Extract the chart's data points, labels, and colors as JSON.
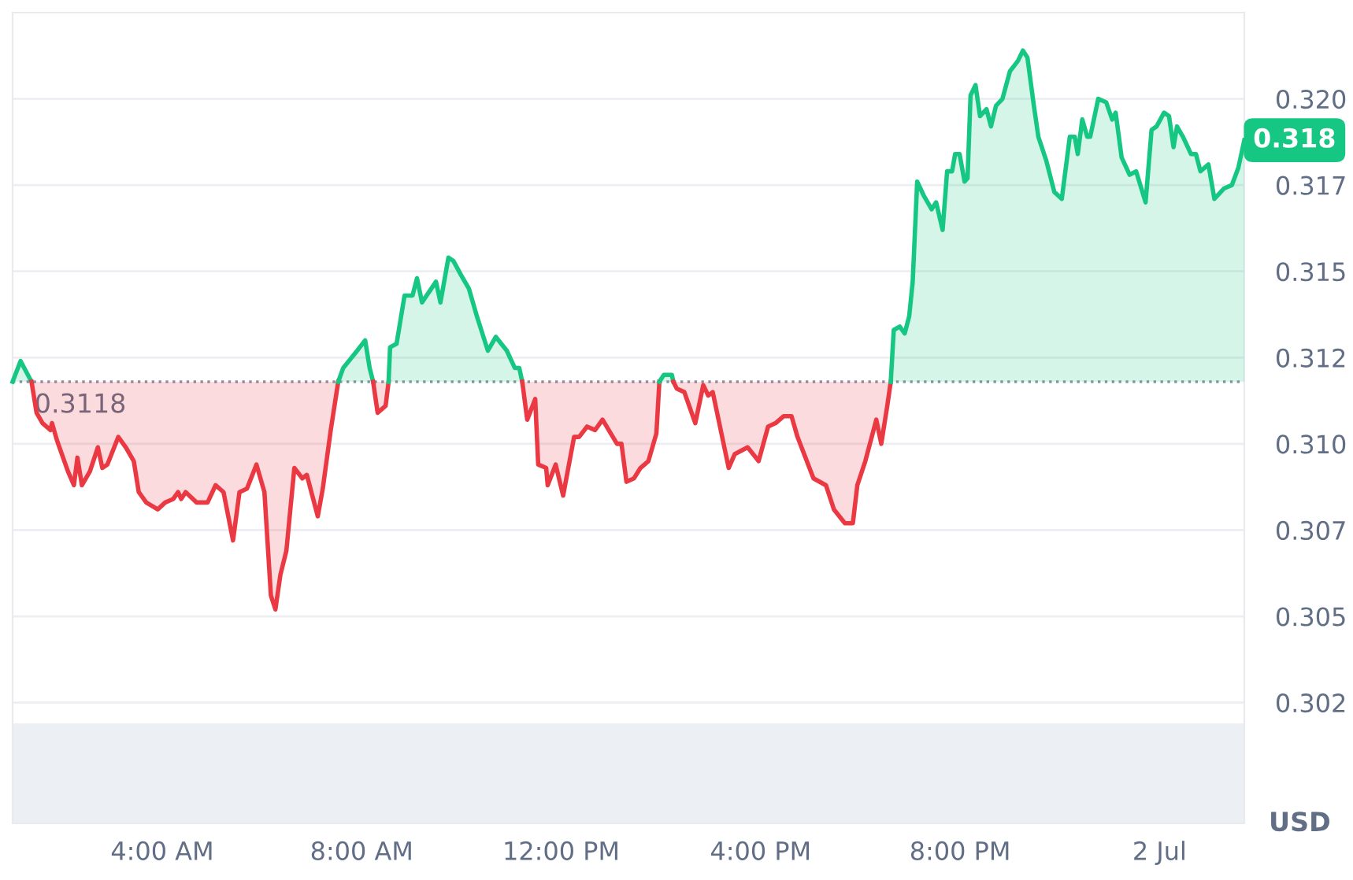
{
  "chart_data": [
    {
      "type": "line",
      "ylabel": "USD",
      "xlim": [
        1.0,
        25.7
      ],
      "xticks": [
        {
          "value": 4,
          "label": "4:00 AM"
        },
        {
          "value": 8,
          "label": "8:00 AM"
        },
        {
          "value": 12,
          "label": "12:00 PM"
        },
        {
          "value": 16,
          "label": "4:00 PM"
        },
        {
          "value": 20,
          "label": "8:00 PM"
        },
        {
          "value": 24,
          "label": "2 Jul"
        }
      ],
      "ylim": [
        0.299,
        0.3225
      ],
      "yticks": [
        {
          "value": 0.3025,
          "label": "0.302"
        },
        {
          "value": 0.305,
          "label": "0.305"
        },
        {
          "value": 0.3075,
          "label": "0.307"
        },
        {
          "value": 0.31,
          "label": "0.310"
        },
        {
          "value": 0.3125,
          "label": "0.312"
        },
        {
          "value": 0.315,
          "label": "0.315"
        },
        {
          "value": 0.3175,
          "label": "0.317"
        },
        {
          "value": 0.32,
          "label": "0.320"
        }
      ],
      "grid": "y",
      "ref_lines": [
        {
          "axis": "y",
          "value": 0.3118,
          "label": "0.3118",
          "color": "#8a93a6",
          "line_style": "dotted"
        }
      ],
      "bands": [
        {
          "axis": "y",
          "from": 0.299,
          "to": 0.3019,
          "color": "#eceff3"
        }
      ],
      "annotations": [
        {
          "text": "0.318",
          "x": 25.7,
          "y": 0.3188
        }
      ],
      "series": [
        {
          "color": "#16c784",
          "x": [
            1.0,
            1.16,
            1.38
          ],
          "values": [
            0.3118,
            0.3124,
            0.3118
          ],
          "lower": [
            0.3118,
            0.3118,
            0.3118
          ],
          "upper": [
            0.3118,
            0.3124,
            0.3118
          ]
        },
        {
          "color": "#ea3943",
          "x": [
            1.38,
            1.48,
            1.6,
            1.76,
            1.79,
            1.89,
            2.11,
            2.23,
            2.3,
            2.39,
            2.55,
            2.71,
            2.8,
            2.9,
            3.12,
            3.27,
            3.43,
            3.53,
            3.68,
            3.91,
            4.06,
            4.22,
            4.32,
            4.38,
            4.47,
            4.69,
            4.91,
            5.07,
            5.23,
            5.42,
            5.55,
            5.7,
            5.89,
            6.05,
            6.18,
            6.27,
            6.37,
            6.49,
            6.65,
            6.81,
            6.9,
            7.12,
            7.22,
            7.38,
            7.53
          ],
          "values": [
            0.3118,
            0.3109,
            0.3106,
            0.3104,
            0.3106,
            0.3101,
            0.3092,
            0.3088,
            0.3096,
            0.3088,
            0.3092,
            0.3099,
            0.3093,
            0.3094,
            0.3102,
            0.3099,
            0.3095,
            0.3086,
            0.3083,
            0.3081,
            0.3083,
            0.3084,
            0.3086,
            0.3084,
            0.3086,
            0.3083,
            0.3083,
            0.3088,
            0.3086,
            0.3072,
            0.3086,
            0.3087,
            0.3094,
            0.3086,
            0.3056,
            0.3052,
            0.3062,
            0.3069,
            0.3093,
            0.309,
            0.3091,
            0.3079,
            0.3087,
            0.3104,
            0.3118
          ],
          "lower": [
            0.3118,
            0.3109,
            0.3106,
            0.3104,
            0.3106,
            0.3101,
            0.3092,
            0.3088,
            0.3096,
            0.3088,
            0.3092,
            0.3099,
            0.3093,
            0.3094,
            0.3102,
            0.3099,
            0.3095,
            0.3086,
            0.3083,
            0.3081,
            0.3083,
            0.3084,
            0.3086,
            0.3084,
            0.3086,
            0.3083,
            0.3083,
            0.3088,
            0.3086,
            0.3072,
            0.3086,
            0.3087,
            0.3094,
            0.3086,
            0.3056,
            0.3052,
            0.3062,
            0.3069,
            0.3093,
            0.309,
            0.3091,
            0.3079,
            0.3087,
            0.3104,
            0.3118
          ],
          "upper": [
            0.3118,
            0.3118,
            0.3118,
            0.3118,
            0.3118,
            0.3118,
            0.3118,
            0.3118,
            0.3118,
            0.3118,
            0.3118,
            0.3118,
            0.3118,
            0.3118,
            0.3118,
            0.3118,
            0.3118,
            0.3118,
            0.3118,
            0.3118,
            0.3118,
            0.3118,
            0.3118,
            0.3118,
            0.3118,
            0.3118,
            0.3118,
            0.3118,
            0.3118,
            0.3118,
            0.3118,
            0.3118,
            0.3118,
            0.3118,
            0.3118,
            0.3118,
            0.3118,
            0.3118,
            0.3118,
            0.3118,
            0.3118,
            0.3118,
            0.3118,
            0.3118,
            0.3118
          ]
        },
        {
          "color": "#16c784",
          "x": [
            7.53,
            7.63,
            7.91,
            8.07,
            8.16,
            8.23
          ],
          "values": [
            0.3118,
            0.3122,
            0.3127,
            0.313,
            0.3122,
            0.3118
          ],
          "lower": [
            0.3118,
            0.3118,
            0.3118,
            0.3118,
            0.3118,
            0.3118
          ],
          "upper": [
            0.3118,
            0.3122,
            0.3127,
            0.313,
            0.3122,
            0.3118
          ]
        },
        {
          "color": "#ea3943",
          "x": [
            8.23,
            8.32,
            8.48,
            8.54
          ],
          "values": [
            0.3118,
            0.3109,
            0.3111,
            0.3118
          ],
          "lower": [
            0.3118,
            0.3109,
            0.3111,
            0.3118
          ],
          "upper": [
            0.3118,
            0.3118,
            0.3118,
            0.3118
          ]
        },
        {
          "color": "#16c784",
          "x": [
            8.54,
            8.57,
            8.7,
            8.86,
            9.02,
            9.11,
            9.21,
            9.49,
            9.58,
            9.74,
            9.84,
            9.99,
            10.15,
            10.31,
            10.53,
            10.69,
            10.91,
            11.07,
            11.16,
            11.22
          ],
          "values": [
            0.3118,
            0.3128,
            0.3129,
            0.3143,
            0.3143,
            0.3148,
            0.3141,
            0.3147,
            0.3141,
            0.3154,
            0.3153,
            0.3149,
            0.3145,
            0.3137,
            0.3127,
            0.3131,
            0.3127,
            0.3122,
            0.3122,
            0.3118
          ],
          "lower": [
            0.3118,
            0.3118,
            0.3118,
            0.3118,
            0.3118,
            0.3118,
            0.3118,
            0.3118,
            0.3118,
            0.3118,
            0.3118,
            0.3118,
            0.3118,
            0.3118,
            0.3118,
            0.3118,
            0.3118,
            0.3118,
            0.3118,
            0.3118
          ],
          "upper": [
            0.3118,
            0.3128,
            0.3129,
            0.3143,
            0.3143,
            0.3148,
            0.3141,
            0.3147,
            0.3141,
            0.3154,
            0.3153,
            0.3149,
            0.3145,
            0.3137,
            0.3127,
            0.3131,
            0.3127,
            0.3122,
            0.3122,
            0.3118
          ]
        },
        {
          "color": "#ea3943",
          "x": [
            11.22,
            11.32,
            11.48,
            11.54,
            11.7,
            11.73,
            11.89,
            12.04,
            12.26,
            12.36,
            12.52,
            12.68,
            12.83,
            13.12,
            13.21,
            13.31,
            13.46,
            13.59,
            13.75,
            13.91,
            13.97
          ],
          "values": [
            0.3118,
            0.3107,
            0.3113,
            0.3094,
            0.3093,
            0.3088,
            0.3094,
            0.3085,
            0.3102,
            0.3102,
            0.3105,
            0.3104,
            0.3107,
            0.31,
            0.31,
            0.3089,
            0.309,
            0.3093,
            0.3095,
            0.3103,
            0.3118
          ],
          "lower": [
            0.3118,
            0.3107,
            0.3113,
            0.3094,
            0.3093,
            0.3088,
            0.3094,
            0.3085,
            0.3102,
            0.3102,
            0.3105,
            0.3104,
            0.3107,
            0.31,
            0.31,
            0.3089,
            0.309,
            0.3093,
            0.3095,
            0.3103,
            0.3118
          ],
          "upper": [
            0.3118,
            0.3118,
            0.3118,
            0.3118,
            0.3118,
            0.3118,
            0.3118,
            0.3118,
            0.3118,
            0.3118,
            0.3118,
            0.3118,
            0.3118,
            0.3118,
            0.3118,
            0.3118,
            0.3118,
            0.3118,
            0.3118,
            0.3118,
            0.3118
          ]
        },
        {
          "color": "#16c784",
          "x": [
            13.97,
            14.06,
            14.22,
            14.25
          ],
          "values": [
            0.3118,
            0.312,
            0.312,
            0.3118
          ],
          "lower": [
            0.3118,
            0.3118,
            0.3118,
            0.3118
          ],
          "upper": [
            0.3118,
            0.312,
            0.312,
            0.3118
          ]
        },
        {
          "color": "#ea3943",
          "x": [
            14.25,
            14.32,
            14.47,
            14.69,
            14.85,
            14.95,
            15.04,
            15.36,
            15.48,
            15.74,
            15.96,
            16.15,
            16.3,
            16.46,
            16.62,
            16.74,
            17.06,
            17.31,
            17.47,
            17.69,
            17.85,
            17.94,
            18.1,
            18.32,
            18.42,
            18.54,
            18.61
          ],
          "values": [
            0.3118,
            0.3116,
            0.3115,
            0.3106,
            0.3117,
            0.3114,
            0.3115,
            0.3093,
            0.3097,
            0.3099,
            0.3095,
            0.3105,
            0.3106,
            0.3108,
            0.3108,
            0.3102,
            0.309,
            0.3088,
            0.3081,
            0.3077,
            0.3077,
            0.3088,
            0.3095,
            0.3107,
            0.31,
            0.3111,
            0.3118
          ],
          "lower": [
            0.3118,
            0.3116,
            0.3115,
            0.3106,
            0.3117,
            0.3114,
            0.3115,
            0.3093,
            0.3097,
            0.3099,
            0.3095,
            0.3105,
            0.3106,
            0.3108,
            0.3108,
            0.3102,
            0.309,
            0.3088,
            0.3081,
            0.3077,
            0.3077,
            0.3088,
            0.3095,
            0.3107,
            0.31,
            0.3111,
            0.3118
          ],
          "upper": [
            0.3118,
            0.3118,
            0.3118,
            0.3118,
            0.3118,
            0.3118,
            0.3118,
            0.3118,
            0.3118,
            0.3118,
            0.3118,
            0.3118,
            0.3118,
            0.3118,
            0.3118,
            0.3118,
            0.3118,
            0.3118,
            0.3118,
            0.3118,
            0.3118,
            0.3118,
            0.3118,
            0.3118,
            0.3118,
            0.3118,
            0.3118
          ]
        },
        {
          "color": "#16c784",
          "x": [
            18.61,
            18.67,
            18.79,
            18.89,
            18.98,
            19.05,
            19.14,
            19.27,
            19.43,
            19.52,
            19.65,
            19.74,
            19.84,
            19.9,
            19.99,
            20.09,
            20.15,
            20.21,
            20.31,
            20.4,
            20.53,
            20.62,
            20.72,
            20.85,
            21.0,
            21.16,
            21.26,
            21.35,
            21.48,
            21.57,
            21.73,
            21.89,
            22.04,
            22.2,
            22.3,
            22.36,
            22.45,
            22.55,
            22.61,
            22.77,
            22.93,
            23.05,
            23.12,
            23.24,
            23.4,
            23.53,
            23.72,
            23.84,
            23.94,
            24.09,
            24.19,
            24.28,
            24.35,
            24.47,
            24.63,
            24.73,
            24.82,
            24.98,
            25.1,
            25.29,
            25.45,
            25.58,
            25.7
          ],
          "values": [
            0.3118,
            0.3133,
            0.3134,
            0.3132,
            0.3137,
            0.3147,
            0.3176,
            0.3172,
            0.3168,
            0.317,
            0.3162,
            0.3179,
            0.3179,
            0.3184,
            0.3184,
            0.3176,
            0.3177,
            0.3201,
            0.3204,
            0.3195,
            0.3197,
            0.3192,
            0.3198,
            0.32,
            0.3208,
            0.3211,
            0.3214,
            0.3212,
            0.3198,
            0.3189,
            0.3182,
            0.3173,
            0.3171,
            0.3189,
            0.3189,
            0.3184,
            0.3194,
            0.3189,
            0.3189,
            0.32,
            0.3199,
            0.3194,
            0.3196,
            0.3183,
            0.3178,
            0.3179,
            0.317,
            0.3191,
            0.3192,
            0.3196,
            0.3195,
            0.3186,
            0.3192,
            0.3189,
            0.3184,
            0.3184,
            0.3179,
            0.3181,
            0.3171,
            0.3174,
            0.3175,
            0.318,
            0.3188
          ],
          "lower": [
            0.3118,
            0.3118,
            0.3118,
            0.3118,
            0.3118,
            0.3118,
            0.3118,
            0.3118,
            0.3118,
            0.3118,
            0.3118,
            0.3118,
            0.3118,
            0.3118,
            0.3118,
            0.3118,
            0.3118,
            0.3118,
            0.3118,
            0.3118,
            0.3118,
            0.3118,
            0.3118,
            0.3118,
            0.3118,
            0.3118,
            0.3118,
            0.3118,
            0.3118,
            0.3118,
            0.3118,
            0.3118,
            0.3118,
            0.3118,
            0.3118,
            0.3118,
            0.3118,
            0.3118,
            0.3118,
            0.3118,
            0.3118,
            0.3118,
            0.3118,
            0.3118,
            0.3118,
            0.3118,
            0.3118,
            0.3118,
            0.3118,
            0.3118,
            0.3118,
            0.3118,
            0.3118,
            0.3118,
            0.3118,
            0.3118,
            0.3118,
            0.3118,
            0.3118,
            0.3118,
            0.3118,
            0.3118,
            0.3118
          ],
          "upper": [
            0.3118,
            0.3133,
            0.3134,
            0.3132,
            0.3137,
            0.3147,
            0.3176,
            0.3172,
            0.3168,
            0.317,
            0.3162,
            0.3179,
            0.3179,
            0.3184,
            0.3184,
            0.3176,
            0.3177,
            0.3201,
            0.3204,
            0.3195,
            0.3197,
            0.3192,
            0.3198,
            0.32,
            0.3208,
            0.3211,
            0.3214,
            0.3212,
            0.3198,
            0.3189,
            0.3182,
            0.3173,
            0.3171,
            0.3189,
            0.3189,
            0.3184,
            0.3194,
            0.3189,
            0.3189,
            0.32,
            0.3199,
            0.3194,
            0.3196,
            0.3183,
            0.3178,
            0.3179,
            0.317,
            0.3191,
            0.3192,
            0.3196,
            0.3195,
            0.3186,
            0.3192,
            0.3189,
            0.3184,
            0.3184,
            0.3179,
            0.3181,
            0.3171,
            0.3174,
            0.3175,
            0.318,
            0.3188
          ]
        }
      ]
    }
  ]
}
